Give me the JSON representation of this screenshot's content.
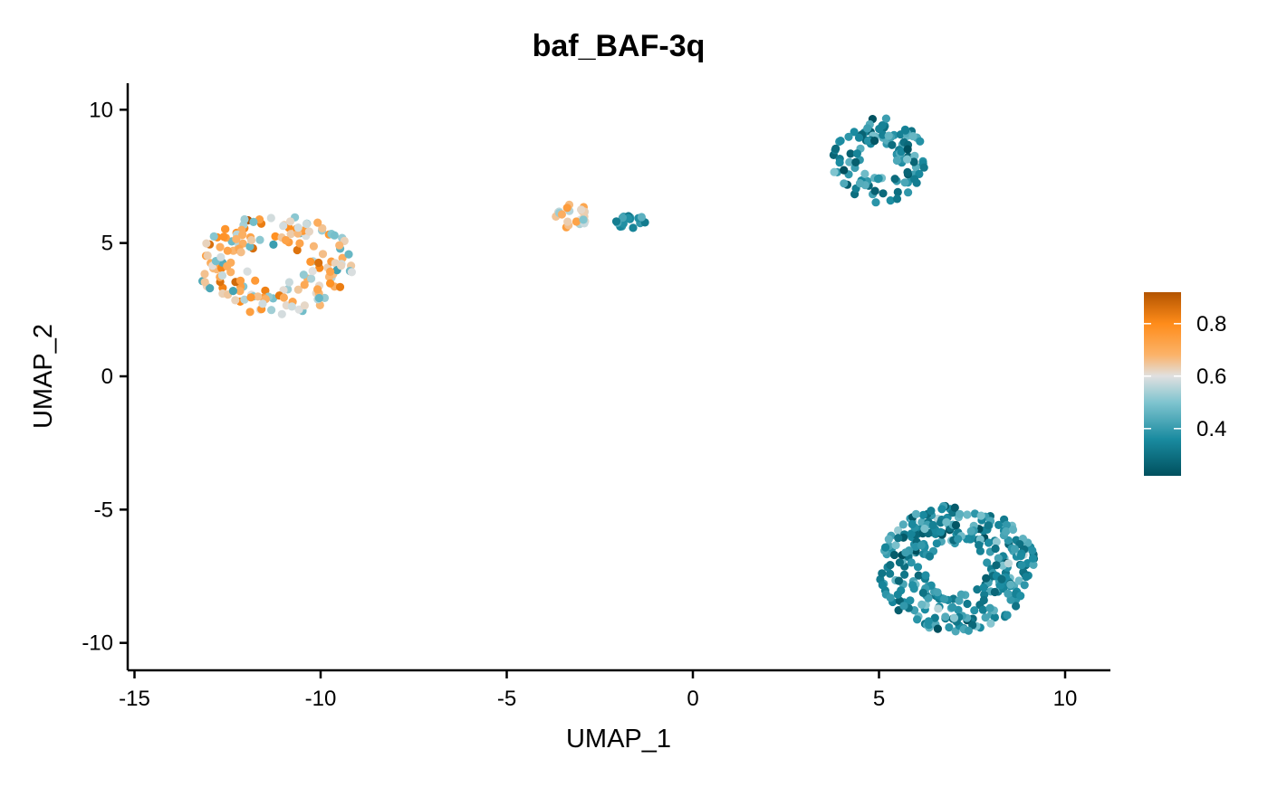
{
  "chart_data": {
    "type": "scatter",
    "title": "baf_BAF-3q",
    "xlabel": "UMAP_1",
    "ylabel": "UMAP_2",
    "xlim": [
      -15.2,
      11.2
    ],
    "ylim": [
      -11.0,
      11.0
    ],
    "x_ticks": [
      -15,
      -10,
      -5,
      0,
      5,
      10
    ],
    "y_ticks": [
      -10,
      -5,
      0,
      5,
      10
    ],
    "x_tick_labels": [
      "-15",
      "-10",
      "-5",
      "0",
      "5",
      "10"
    ],
    "y_tick_labels": [
      "-10",
      "-5",
      "0",
      "5",
      "10"
    ],
    "grid": false,
    "legend_position": "right",
    "color_scale": {
      "min": 0.22,
      "max": 0.92,
      "ticks": [
        0.4,
        0.6,
        0.8
      ],
      "tick_labels": [
        "0.4",
        "0.6",
        "0.8"
      ],
      "stops": [
        {
          "value": 0.22,
          "color": "#00505e"
        },
        {
          "value": 0.36,
          "color": "#1a8ba0"
        },
        {
          "value": 0.5,
          "color": "#7fc4cf"
        },
        {
          "value": 0.6,
          "color": "#e0e0e0"
        },
        {
          "value": 0.68,
          "color": "#fbb36a"
        },
        {
          "value": 0.8,
          "color": "#ff8c1a"
        },
        {
          "value": 0.92,
          "color": "#b35400"
        }
      ]
    },
    "clusters": [
      {
        "center": [
          -11.2,
          4.2
        ],
        "spread": [
          2.1,
          1.9
        ],
        "count": 170,
        "mean": 0.64,
        "sd": 0.11
      },
      {
        "center": [
          -3.2,
          6.0
        ],
        "spread": [
          0.5,
          0.45
        ],
        "count": 26,
        "mean": 0.66,
        "sd": 0.08
      },
      {
        "center": [
          -1.7,
          5.8
        ],
        "spread": [
          0.45,
          0.25
        ],
        "count": 20,
        "mean": 0.38,
        "sd": 0.06
      },
      {
        "center": [
          5.0,
          8.1
        ],
        "spread": [
          1.25,
          1.6
        ],
        "count": 110,
        "mean": 0.36,
        "sd": 0.07
      },
      {
        "center": [
          7.1,
          -7.2
        ],
        "spread": [
          2.1,
          2.4
        ],
        "count": 330,
        "mean": 0.36,
        "sd": 0.07
      }
    ]
  }
}
